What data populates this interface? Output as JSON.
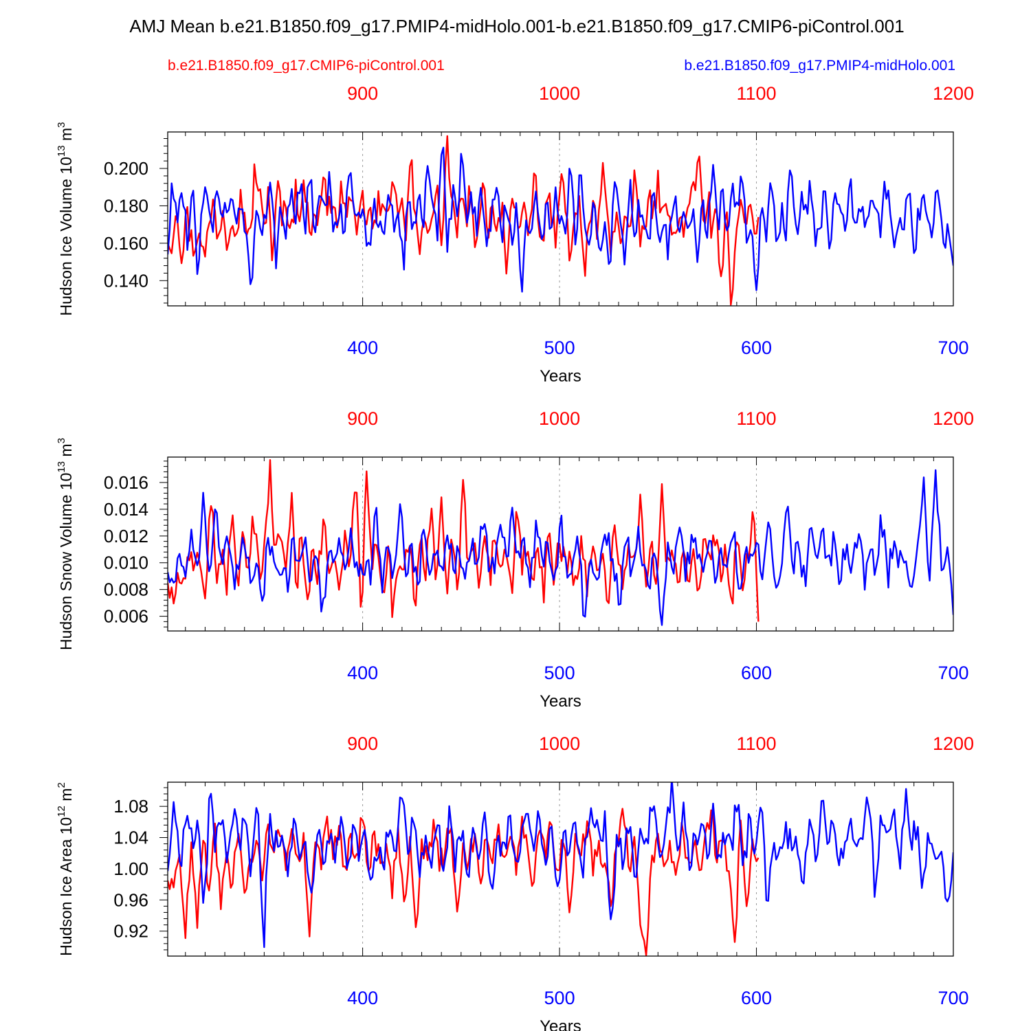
{
  "title": "AMJ Mean b.e21.B1850.f09_g17.PMIP4-midHolo.001-b.e21.B1850.f09_g17.CMIP6-piControl.001",
  "legend": {
    "red_label": "b.e21.B1850.f09_g17.CMIP6-piControl.001",
    "blue_label": "b.e21.B1850.f09_g17.PMIP4-midHolo.001"
  },
  "colors": {
    "red": "#ff0000",
    "blue": "#0000ff",
    "axis": "#000000",
    "grid": "#9a9a9a"
  },
  "chart_data": [
    {
      "type": "line",
      "ylabel": "Hudson Ice Volume 10",
      "ylabel_exp": "13",
      "ylabel_unit": " m",
      "ylabel_unit_exp": "3",
      "xlabel": "Years",
      "xlim": [
        301,
        700
      ],
      "ylim": [
        0.1265,
        0.2195
      ],
      "yticks": [
        "0.140",
        "0.160",
        "0.180",
        "0.200"
      ],
      "xticks": [
        "400",
        "500",
        "600",
        "700"
      ],
      "top_xticks": [
        "900",
        "1000",
        "1100",
        "1200"
      ],
      "series": [
        {
          "name": "b.e21.B1850.f09_g17.CMIP6-piControl.001",
          "color": "red",
          "x_start": 301,
          "x_end": 601,
          "anchors": [
            0.16,
            0.162,
            0.185,
            0.149,
            0.178,
            0.163,
            0.156,
            0.172,
            0.148,
            0.17,
            0.182,
            0.164,
            0.178,
            0.161,
            0.18,
            0.167,
            0.185,
            0.173,
            0.159,
            0.201,
            0.187,
            0.166,
            0.19,
            0.147,
            0.194,
            0.172,
            0.181,
            0.168,
            0.188,
            0.176,
            0.191,
            0.165,
            0.183,
            0.17,
            0.196,
            0.177,
            0.186,
            0.168,
            0.192,
            0.174,
            0.183,
            0.165,
            0.19,
            0.173,
            0.179,
            0.162,
            0.188,
            0.175,
            0.166,
            0.193,
            0.178,
            0.184,
            0.16,
            0.209,
            0.172,
            0.153,
            0.181,
            0.168,
            0.176,
            0.185,
            0.16,
            0.219,
            0.178,
            0.167,
            0.182,
            0.171,
            0.187,
            0.158,
            0.178,
            0.19,
            0.169,
            0.181,
            0.166,
            0.185,
            0.142,
            0.177,
            0.172,
            0.169,
            0.181,
            0.164,
            0.198,
            0.176,
            0.159,
            0.184,
            0.171,
            0.163,
            0.197,
            0.179,
            0.145,
            0.176,
            0.184,
            0.141,
            0.17,
            0.181,
            0.165,
            0.204,
            0.169,
            0.158,
            0.177,
            0.165,
            0.172,
            0.168,
            0.193,
            0.162,
            0.166,
            0.185,
            0.171,
            0.195,
            0.169,
            0.186,
            0.174,
            0.158,
            0.177,
            0.167,
            0.182,
            0.187,
            0.206,
            0.171,
            0.185,
            0.164,
            0.176,
            0.126,
            0.181,
            0.126,
            0.168,
            0.183,
            0.171,
            0.187,
            0.162,
            0.174
          ]
        },
        {
          "name": "b.e21.B1850.f09_g17.PMIP4-midHolo.001",
          "color": "blue",
          "x_start": 301,
          "x_end": 700,
          "anchors": [
            0.154,
            0.197,
            0.171,
            0.193,
            0.156,
            0.19,
            0.143,
            0.175,
            0.186,
            0.161,
            0.188,
            0.182,
            0.176,
            0.191,
            0.17,
            0.183,
            0.166,
            0.134,
            0.178,
            0.163,
            0.174,
            0.19,
            0.152,
            0.182,
            0.167,
            0.19,
            0.171,
            0.195,
            0.163,
            0.204,
            0.16,
            0.186,
            0.171,
            0.193,
            0.165,
            0.18,
            0.17,
            0.199,
            0.175,
            0.182,
            0.167,
            0.151,
            0.185,
            0.173,
            0.159,
            0.192,
            0.165,
            0.178,
            0.147,
            0.188,
            0.166,
            0.185,
            0.171,
            0.202,
            0.174,
            0.164,
            0.216,
            0.158,
            0.186,
            0.169,
            0.21,
            0.169,
            0.184,
            0.163,
            0.193,
            0.157,
            0.18,
            0.19,
            0.165,
            0.177,
            0.161,
            0.182,
            0.131,
            0.173,
            0.166,
            0.188,
            0.159,
            0.181,
            0.165,
            0.19,
            0.172,
            0.165,
            0.201,
            0.159,
            0.199,
            0.168,
            0.165,
            0.179,
            0.152,
            0.172,
            0.141,
            0.193,
            0.184,
            0.147,
            0.195,
            0.163,
            0.18,
            0.17,
            0.159,
            0.188,
            0.165,
            0.176,
            0.155,
            0.186,
            0.167,
            0.172,
            0.159,
            0.179,
            0.147,
            0.185,
            0.163,
            0.199,
            0.17,
            0.188,
            0.165,
            0.19,
            0.18,
            0.193,
            0.157,
            0.171,
            0.136,
            0.181,
            0.167,
            0.192,
            0.153,
            0.178,
            0.168,
            0.207,
            0.165,
            0.188,
            0.174,
            0.196,
            0.161,
            0.175,
            0.185,
            0.158,
            0.192,
            0.173,
            0.163,
            0.191,
            0.17,
            0.182,
            0.168,
            0.184,
            0.179,
            0.164,
            0.194,
            0.183,
            0.157,
            0.178,
            0.167,
            0.191,
            0.154,
            0.175,
            0.186,
            0.163,
            0.171,
            0.194,
            0.16,
            0.173,
            0.148
          ]
        }
      ]
    },
    {
      "type": "line",
      "ylabel": "Hudson Snow Volume 10",
      "ylabel_exp": "13",
      "ylabel_unit": " m",
      "ylabel_unit_exp": "3",
      "xlabel": "Years",
      "xlim": [
        301,
        700
      ],
      "ylim": [
        0.0049,
        0.0179
      ],
      "yticks": [
        "0.006",
        "0.008",
        "0.010",
        "0.012",
        "0.014",
        "0.016"
      ],
      "xticks": [
        "400",
        "500",
        "600",
        "700"
      ],
      "top_xticks": [
        "900",
        "1000",
        "1100",
        "1200"
      ],
      "series": [
        {
          "name": "b.e21.B1850.f09_g17.CMIP6-piControl.001",
          "color": "red",
          "x_start": 301,
          "x_end": 601,
          "anchors": [
            0.0085,
            0.0068,
            0.0092,
            0.0078,
            0.0102,
            0.0095,
            0.011,
            0.0072,
            0.0155,
            0.0088,
            0.0112,
            0.0076,
            0.0152,
            0.0069,
            0.0118,
            0.0095,
            0.0132,
            0.0088,
            0.0115,
            0.0172,
            0.0101,
            0.0128,
            0.0094,
            0.0148,
            0.0083,
            0.0125,
            0.0071,
            0.0119,
            0.0086,
            0.0134,
            0.0092,
            0.0108,
            0.0066,
            0.0124,
            0.0087,
            0.0177,
            0.0051,
            0.0171,
            0.0092,
            0.0124,
            0.0078,
            0.0112,
            0.0056,
            0.0105,
            0.0095,
            0.0128,
            0.0069,
            0.0117,
            0.0085,
            0.0139,
            0.0091,
            0.0151,
            0.0082,
            0.0116,
            0.0072,
            0.0162,
            0.0098,
            0.0113,
            0.0079,
            0.0121,
            0.0087,
            0.0128,
            0.0096,
            0.0106,
            0.0075,
            0.0139,
            0.0091,
            0.0118,
            0.0081,
            0.0122,
            0.0068,
            0.0134,
            0.0088,
            0.0115,
            0.0097,
            0.0105,
            0.0086,
            0.012,
            0.0079,
            0.0113,
            0.0092,
            0.0108,
            0.0071,
            0.0127,
            0.0098,
            0.0087,
            0.0118,
            0.0094,
            0.0151,
            0.0082,
            0.0112,
            0.0078,
            0.0161,
            0.0097,
            0.0121,
            0.0084,
            0.0115,
            0.0092,
            0.0108,
            0.0081,
            0.0118,
            0.0093,
            0.0126,
            0.0085,
            0.0113,
            0.0067,
            0.0117,
            0.0089,
            0.0102,
            0.0147,
            0.0056
          ]
        },
        {
          "name": "b.e21.B1850.f09_g17.PMIP4-midHolo.001",
          "color": "blue",
          "x_start": 301,
          "x_end": 700,
          "anchors": [
            0.0093,
            0.0085,
            0.0107,
            0.0089,
            0.0126,
            0.0097,
            0.0155,
            0.0082,
            0.0147,
            0.0094,
            0.0111,
            0.0085,
            0.0097,
            0.0116,
            0.0089,
            0.0107,
            0.0075,
            0.0122,
            0.0095,
            0.0101,
            0.0082,
            0.0118,
            0.0096,
            0.0127,
            0.0087,
            0.0105,
            0.0056,
            0.0115,
            0.0089,
            0.0119,
            0.0093,
            0.0125,
            0.0082,
            0.0103,
            0.0091,
            0.0136,
            0.0087,
            0.0111,
            0.0094,
            0.0146,
            0.0089,
            0.0115,
            0.0083,
            0.0125,
            0.0091,
            0.0106,
            0.0097,
            0.0121,
            0.0094,
            0.0108,
            0.0087,
            0.0115,
            0.0103,
            0.0131,
            0.0094,
            0.0102,
            0.0121,
            0.0106,
            0.0139,
            0.0094,
            0.0116,
            0.0089,
            0.0137,
            0.0098,
            0.0115,
            0.0079,
            0.0131,
            0.0092,
            0.0102,
            0.0125,
            0.0048,
            0.0113,
            0.0087,
            0.0102,
            0.0121,
            0.0093,
            0.0065,
            0.0118,
            0.0095,
            0.0124,
            0.0098,
            0.0086,
            0.0105,
            0.0051,
            0.0116,
            0.0091,
            0.0127,
            0.0086,
            0.0121,
            0.0103,
            0.0093,
            0.0117,
            0.0084,
            0.0112,
            0.0096,
            0.0125,
            0.0085,
            0.0101,
            0.0117,
            0.0109,
            0.0082,
            0.0132,
            0.0087,
            0.0101,
            0.0147,
            0.0091,
            0.0119,
            0.0085,
            0.0124,
            0.0097,
            0.0138,
            0.0092,
            0.0121,
            0.0088,
            0.0117,
            0.0096,
            0.0128,
            0.0089,
            0.0111,
            0.0093,
            0.0134,
            0.0085,
            0.0122,
            0.0097,
            0.0105,
            0.0087,
            0.0113,
            0.0167,
            0.0084,
            0.0171,
            0.0094,
            0.0112,
            0.0061
          ]
        }
      ]
    },
    {
      "type": "line",
      "ylabel": "Hudson Ice Area 10",
      "ylabel_exp": "12",
      "ylabel_unit": " m",
      "ylabel_unit_exp": "2",
      "xlabel": "Years",
      "xlim": [
        301,
        700
      ],
      "ylim": [
        0.888,
        1.111
      ],
      "yticks": [
        "0.92",
        "0.96",
        "1.00",
        "1.04",
        "1.08"
      ],
      "xticks": [
        "400",
        "500",
        "600",
        "700"
      ],
      "top_xticks": [
        "900",
        "1000",
        "1100",
        "1200"
      ],
      "series": [
        {
          "name": "b.e21.B1850.f09_g17.CMIP6-piControl.001",
          "color": "red",
          "x_start": 301,
          "x_end": 601,
          "anchors": [
            0.985,
            0.976,
            1.018,
            0.911,
            1.034,
            0.924,
            1.036,
            0.972,
            1.058,
            0.948,
            1.021,
            0.981,
            1.045,
            0.969,
            1.012,
            1.036,
            0.985,
            1.057,
            1.021,
            1.042,
            0.998,
            1.051,
            1.015,
            1.046,
            0.913,
            1.034,
            0.999,
            1.067,
            1.012,
            1.055,
            1.003,
            1.045,
            1.019,
            1.062,
            0.997,
            1.048,
            1.007,
            1.032,
            0.962,
            1.054,
            0.958,
            1.041,
            0.925,
            1.038,
            1.011,
            1.063,
            0.997,
            1.026,
            1.052,
            0.945,
            1.033,
            1.011,
            1.045,
            0.981,
            1.038,
            1.007,
            1.057,
            1.015,
            1.041,
            0.992,
            1.067,
            1.022,
            0.983,
            1.049,
            1.011,
            1.056,
            0.998,
            1.032,
            0.944,
            1.045,
            1.017,
            1.061,
            0.991,
            1.036,
            1.007,
            0.952,
            1.029,
            1.077,
            1.003,
            1.041,
            0.928,
            0.889,
            1.017,
            1.045,
            1.003,
            1.036,
            0.992,
            1.059,
            1.014,
            1.028,
            0.998,
            1.045,
            1.075,
            1.008,
            1.036,
            0.997,
            0.906,
            1.062,
            0.952,
            1.038,
            1.014
          ]
        },
        {
          "name": "b.e21.B1850.f09_g17.PMIP4-midHolo.001",
          "color": "blue",
          "x_start": 301,
          "x_end": 700,
          "anchors": [
            0.997,
            1.087,
            1.007,
            1.06,
            1.032,
            1.068,
            0.927,
            1.094,
            1.023,
            1.078,
            0.997,
            1.065,
            1.041,
            1.052,
            0.993,
            1.089,
            0.905,
            1.063,
            1.032,
            1.045,
            0.988,
            1.065,
            1.012,
            1.035,
            0.967,
            1.047,
            0.998,
            1.042,
            1.005,
            1.085,
            0.994,
            1.051,
            1.006,
            1.044,
            0.973,
            1.035,
            1.015,
            1.042,
            1.008,
            1.112,
            1.024,
            1.061,
            0.988,
            1.043,
            1.001,
            1.057,
            0.995,
            1.068,
            1.011,
            1.047,
            0.983,
            1.041,
            1.023,
            1.065,
            0.952,
            1.047,
            1.012,
            1.081,
            0.997,
            1.036,
            1.062,
            1.014,
            1.074,
            1.003,
            1.056,
            0.977,
            1.047,
            1.021,
            1.061,
            0.986,
            1.041,
            1.073,
            1.032,
            1.059,
            0.922,
            1.055,
            1.011,
            1.076,
            0.981,
            1.058,
            1.036,
            1.093,
            1.015,
            1.047,
            1.104,
            1.021,
            1.087,
            0.998,
            1.043,
            1.058,
            1.011,
            1.067,
            0.998,
            1.051,
            1.024,
            1.095,
            1.003,
            1.061,
            1.033,
            1.073,
            0.954,
            1.048,
            1.011,
            1.056,
            1.027,
            1.039,
            0.977,
            1.065,
            1.008,
            1.087,
            1.031,
            1.058,
            1.002,
            1.042,
            1.063,
            1.019,
            1.051,
            1.088,
            0.966,
            1.063,
            1.02,
            1.077,
            0.998,
            1.101,
            1.036,
            1.064,
            0.968,
            1.052,
            1.012,
            1.024,
            0.957,
            1.021
          ]
        }
      ]
    }
  ]
}
